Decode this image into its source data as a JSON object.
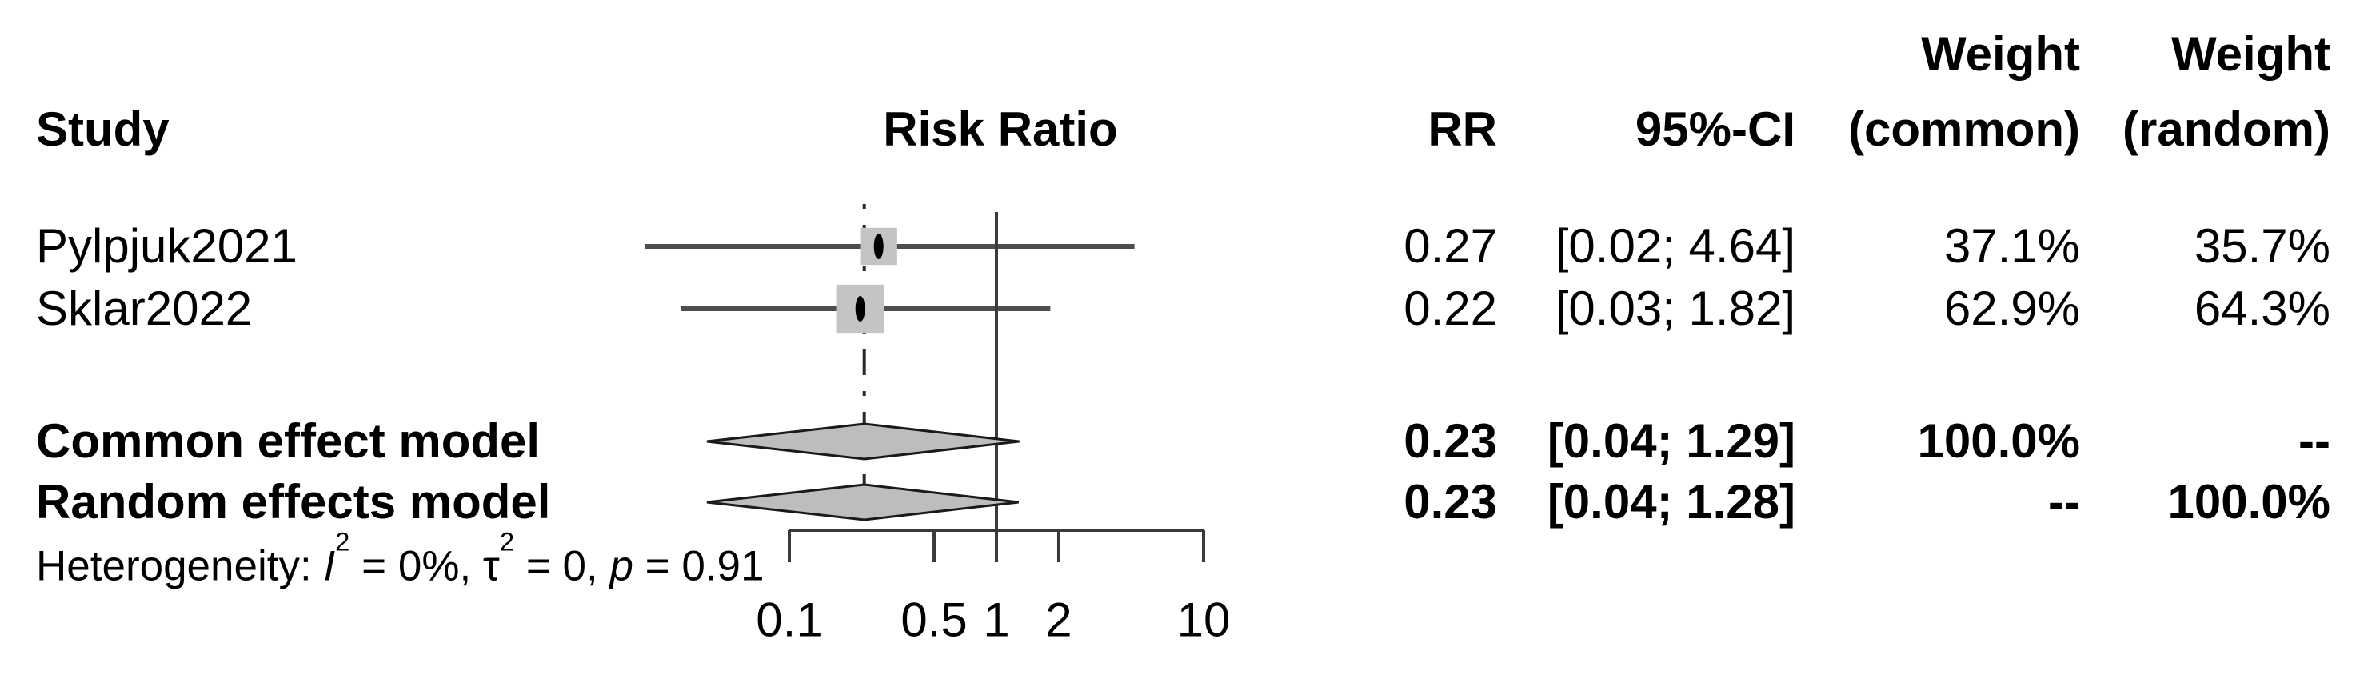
{
  "header": {
    "study": "Study",
    "risk_ratio": "Risk Ratio",
    "rr": "RR",
    "ci": "95%-CI",
    "weight_common_line1": "Weight",
    "weight_common_line2": "(common)",
    "weight_random_line1": "Weight",
    "weight_random_line2": "(random)"
  },
  "het": {
    "prefix": "Heterogeneity: ",
    "i": "I",
    "sup": "2",
    "i_rest": " = 0%, ",
    "tau": "τ",
    "tau_rest": " = 0, ",
    "p": "p",
    "p_rest": " = 0.91"
  },
  "chart_data": {
    "type": "forest",
    "title": "Risk Ratio",
    "scale": "log10",
    "x_range": [
      0.1,
      10
    ],
    "reference_line": 1,
    "pooled_estimate": 0.23,
    "axis_ticks": [
      {
        "v": 0.1,
        "label": "0.1"
      },
      {
        "v": 0.5,
        "label": "0.5"
      },
      {
        "v": 1,
        "label": "1"
      },
      {
        "v": 2,
        "label": "2"
      },
      {
        "v": 10,
        "label": "10"
      }
    ],
    "studies": [
      {
        "label": "Pylpjuk2021",
        "rr": 0.27,
        "lo": 0.02,
        "hi": 4.64,
        "rr_text": "0.27",
        "ci_text": "[0.02; 4.64]",
        "weight_common": 37.1,
        "weight_random": 35.7,
        "weight_common_text": "37.1%",
        "weight_random_text": "35.7%"
      },
      {
        "label": "Sklar2022",
        "rr": 0.22,
        "lo": 0.03,
        "hi": 1.82,
        "rr_text": "0.22",
        "ci_text": "[0.03; 1.82]",
        "weight_common": 62.9,
        "weight_random": 64.3,
        "weight_common_text": "62.9%",
        "weight_random_text": "64.3%"
      }
    ],
    "models": [
      {
        "label": "Common effect model",
        "rr": 0.23,
        "lo": 0.04,
        "hi": 1.29,
        "rr_text": "0.23",
        "ci_text": "[0.04; 1.29]",
        "weight_common_text": "100.0%",
        "weight_random_text": "--"
      },
      {
        "label": "Random effects model",
        "rr": 0.23,
        "lo": 0.04,
        "hi": 1.28,
        "rr_text": "0.23",
        "ci_text": "[0.04; 1.28]",
        "weight_common_text": "--",
        "weight_random_text": "100.0%"
      }
    ],
    "heterogeneity": {
      "I2": "0%",
      "tau2": "0",
      "p": "0.91"
    },
    "colors": {
      "ci_line": "#4d4d4d",
      "square": "#c4c4c4",
      "point": "#000000",
      "diamond_fill": "#bdbdbd",
      "diamond_stroke": "#1a1a1a",
      "axis": "#3a3a3a",
      "ref_line": "#3a3a3a",
      "pooled_line": "#2a2a2a"
    }
  }
}
